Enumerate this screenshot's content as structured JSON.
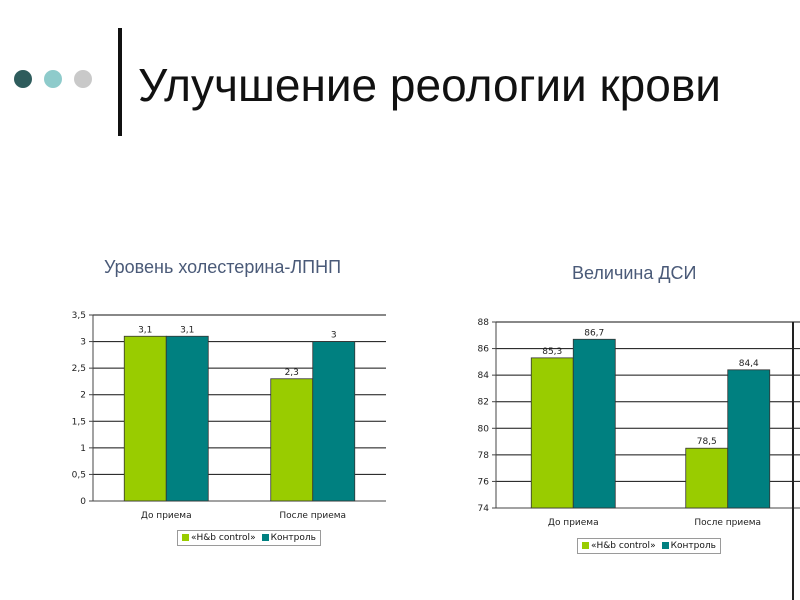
{
  "slide": {
    "title": "Улучшение реологии крови",
    "accent_dots": [
      "#2e5c5c",
      "#8ecbcb",
      "#c9c9c9"
    ]
  },
  "charts": {
    "left_title": "Уровень холестерина-ЛПНП",
    "right_title": "Величина ДСИ"
  },
  "chart_data": [
    {
      "type": "bar",
      "title": "Уровень холестерина-ЛПНП",
      "categories": [
        "До приема",
        "После приема"
      ],
      "series": [
        {
          "name": "«H&b control»",
          "values": [
            3.1,
            2.3
          ],
          "labels": [
            "3,1",
            "2,3"
          ],
          "color": "#99cc00"
        },
        {
          "name": "Контроль",
          "values": [
            3.1,
            3.0
          ],
          "labels": [
            "3,1",
            "3"
          ],
          "color": "#008080"
        }
      ],
      "ylim": [
        0,
        3.5
      ],
      "yticks": [
        "0",
        "0,5",
        "1",
        "1,5",
        "2",
        "2,5",
        "3",
        "3,5"
      ],
      "grid": true,
      "legend": "bottom"
    },
    {
      "type": "bar",
      "title": "Величина ДСИ",
      "categories": [
        "До приема",
        "После приема"
      ],
      "series": [
        {
          "name": "«H&b control»",
          "values": [
            85.3,
            78.5
          ],
          "labels": [
            "85,3",
            "78,5"
          ],
          "color": "#99cc00"
        },
        {
          "name": "Контроль",
          "values": [
            86.7,
            84.4
          ],
          "labels": [
            "86,7",
            "84,4"
          ],
          "color": "#008080"
        }
      ],
      "ylim": [
        74,
        88
      ],
      "yticks": [
        "74",
        "76",
        "78",
        "80",
        "82",
        "84",
        "86",
        "88"
      ],
      "grid": true,
      "legend": "bottom"
    }
  ]
}
